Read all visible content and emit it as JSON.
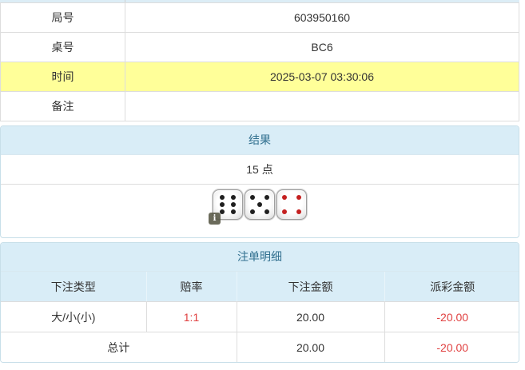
{
  "palette": {
    "header_bg": "#d9edf7",
    "header_text": "#31708f",
    "highlight_yellow": "#ffff99",
    "negative_red": "#e04040",
    "grid_border": "#dddddd",
    "panel_border": "#c8dfe9"
  },
  "info": {
    "rows": [
      {
        "label": "局号",
        "value": "603950160",
        "highlight": false
      },
      {
        "label": "桌号",
        "value": "BC6",
        "highlight": false
      },
      {
        "label": "时间",
        "value": "2025-03-07 03:30:06",
        "highlight": true
      },
      {
        "label": "备注",
        "value": "",
        "highlight": false
      }
    ]
  },
  "result": {
    "title": "结果",
    "points": "15 点",
    "dice": [
      {
        "value": 6,
        "pip_color": "#1f1f1f"
      },
      {
        "value": 5,
        "pip_color": "#1f1f1f"
      },
      {
        "value": 4,
        "pip_color": "#c42020"
      }
    ],
    "info_badge": "i"
  },
  "bets": {
    "title": "注单明细",
    "columns": [
      "下注类型",
      "赔率",
      "下注金额",
      "派彩金额"
    ],
    "rows": [
      {
        "type": "大/小(小)",
        "odds": "1:1",
        "amount": "20.00",
        "payout": "-20.00"
      }
    ],
    "total": {
      "label": "总计",
      "amount": "20.00",
      "payout": "-20.00"
    }
  }
}
